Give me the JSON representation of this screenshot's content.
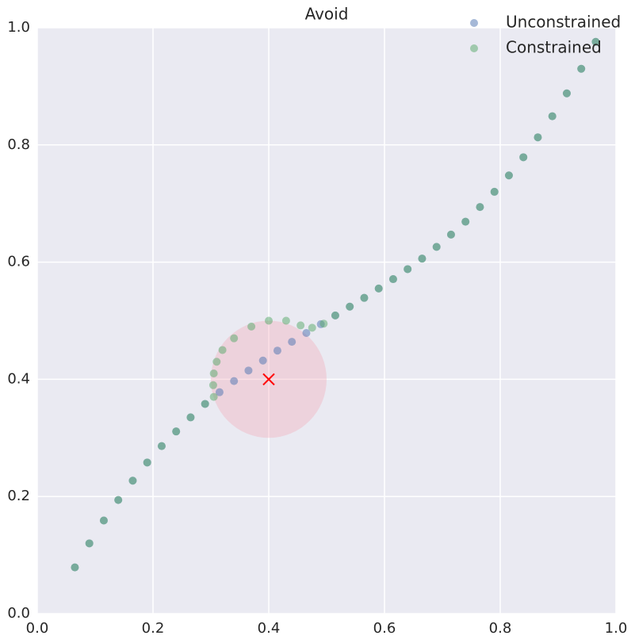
{
  "chart_data": {
    "type": "scatter",
    "title": "Avoid",
    "xlim": [
      0,
      1
    ],
    "ylim": [
      0,
      1
    ],
    "xticks": [
      {
        "value": 0,
        "label": "0.0"
      },
      0.2,
      0.4,
      0.6,
      0.8,
      {
        "value": 1,
        "label": "1.0"
      }
    ],
    "yticks": [
      {
        "value": 0,
        "label": "0.0"
      },
      0.2,
      0.4,
      0.6,
      0.8,
      {
        "value": 1,
        "label": "1.0"
      }
    ],
    "grid": true,
    "legend": "upper right",
    "obstacle": {
      "center": [
        0.4,
        0.4
      ],
      "radius": 0.1,
      "color": "#f4a6b4",
      "marker_color": "#ff0000"
    },
    "series": [
      {
        "name": "Unconstrained",
        "color": "#4c72b0",
        "x": [
          0.065,
          0.09,
          0.115,
          0.14,
          0.165,
          0.19,
          0.215,
          0.24,
          0.265,
          0.29,
          0.315,
          0.34,
          0.365,
          0.39,
          0.415,
          0.44,
          0.465,
          0.49,
          0.515,
          0.54,
          0.565,
          0.59,
          0.615,
          0.64,
          0.665,
          0.69,
          0.715,
          0.74,
          0.765,
          0.79,
          0.815,
          0.84,
          0.865,
          0.89,
          0.915,
          0.94,
          0.965
        ],
        "values": [
          0.079,
          0.12,
          0.159,
          0.194,
          0.227,
          0.258,
          0.286,
          0.311,
          0.335,
          0.358,
          0.378,
          0.397,
          0.415,
          0.432,
          0.449,
          0.464,
          0.479,
          0.494,
          0.509,
          0.524,
          0.539,
          0.555,
          0.571,
          0.588,
          0.606,
          0.626,
          0.647,
          0.669,
          0.694,
          0.72,
          0.748,
          0.779,
          0.813,
          0.849,
          0.888,
          0.93,
          0.976
        ]
      },
      {
        "name": "Constrained",
        "color": "#55a868",
        "x": [
          0.065,
          0.09,
          0.115,
          0.14,
          0.165,
          0.19,
          0.215,
          0.24,
          0.265,
          0.29,
          0.305,
          0.304,
          0.305,
          0.31,
          0.32,
          0.34,
          0.37,
          0.4,
          0.43,
          0.455,
          0.475,
          0.495,
          0.515,
          0.54,
          0.565,
          0.59,
          0.615,
          0.64,
          0.665,
          0.69,
          0.715,
          0.74,
          0.765,
          0.79,
          0.815,
          0.84,
          0.865,
          0.89,
          0.915,
          0.94,
          0.965
        ],
        "values": [
          0.079,
          0.12,
          0.159,
          0.194,
          0.227,
          0.258,
          0.286,
          0.311,
          0.335,
          0.358,
          0.37,
          0.39,
          0.41,
          0.43,
          0.45,
          0.47,
          0.49,
          0.5,
          0.5,
          0.492,
          0.488,
          0.495,
          0.509,
          0.524,
          0.539,
          0.555,
          0.571,
          0.588,
          0.606,
          0.626,
          0.647,
          0.669,
          0.694,
          0.72,
          0.748,
          0.779,
          0.813,
          0.849,
          0.888,
          0.93,
          0.976
        ]
      }
    ]
  }
}
